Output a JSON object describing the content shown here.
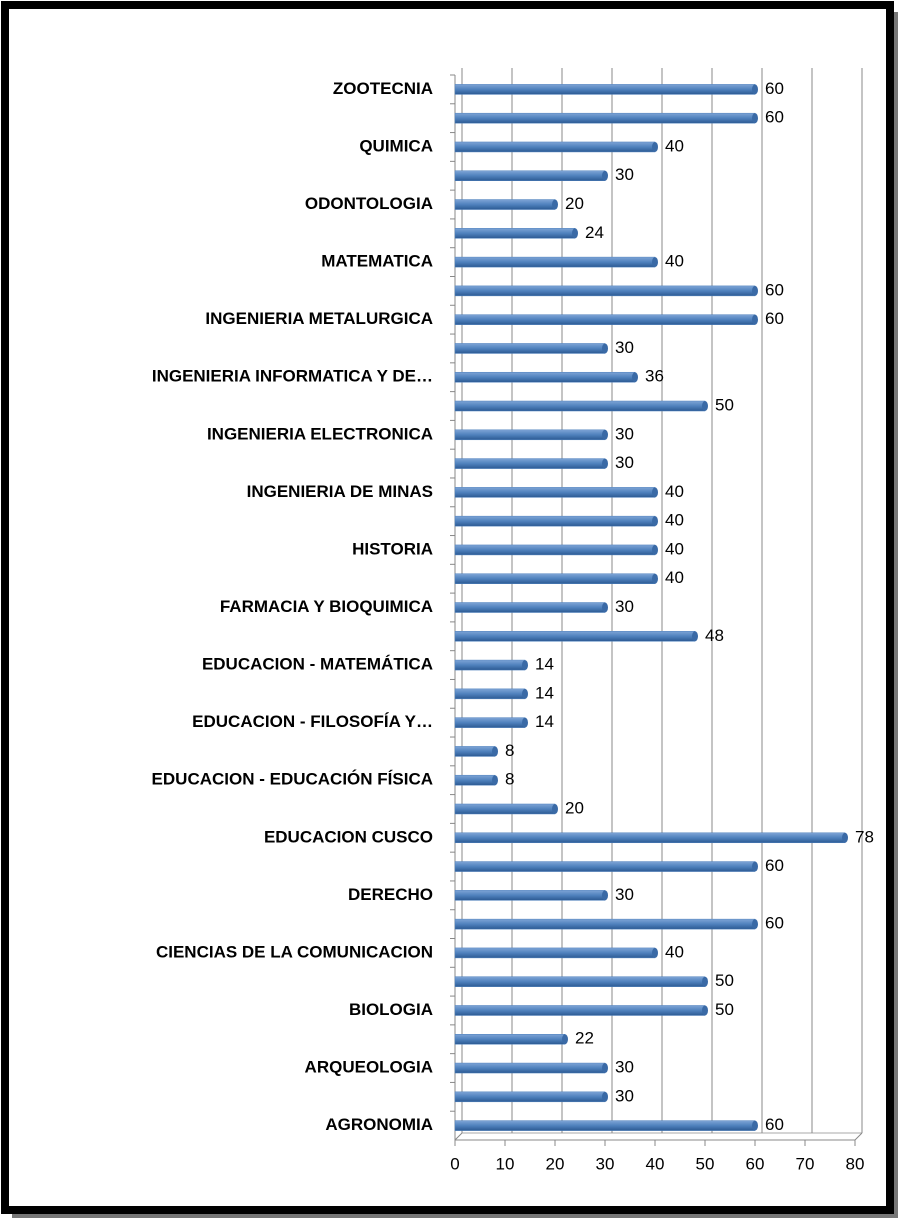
{
  "chart_data": {
    "type": "bar",
    "orientation": "horizontal",
    "color": "#4f81bd",
    "categories": [
      "ZOOTECNIA",
      null,
      "QUIMICA",
      null,
      "ODONTOLOGIA",
      null,
      "MATEMATICA",
      null,
      "INGENIERIA METALURGICA",
      null,
      "INGENIERIA INFORMATICA Y DE…",
      null,
      "INGENIERIA ELECTRONICA",
      null,
      "INGENIERIA DE MINAS",
      null,
      "HISTORIA",
      null,
      "FARMACIA Y BIOQUIMICA",
      null,
      "EDUCACION - MATEMÁTICA",
      null,
      "EDUCACION - FILOSOFÍA Y…",
      null,
      "EDUCACION - EDUCACIÓN FÍSICA",
      null,
      "EDUCACION CUSCO",
      null,
      "DERECHO",
      null,
      "CIENCIAS DE LA COMUNICACION",
      null,
      "BIOLOGIA",
      null,
      "ARQUEOLOGIA",
      null,
      "AGRONOMIA"
    ],
    "values": [
      60,
      60,
      40,
      30,
      20,
      24,
      40,
      60,
      60,
      30,
      36,
      50,
      30,
      30,
      40,
      40,
      40,
      40,
      30,
      48,
      14,
      14,
      14,
      8,
      8,
      20,
      78,
      60,
      30,
      60,
      40,
      50,
      50,
      22,
      30,
      30,
      60
    ],
    "xlim": [
      0,
      80
    ],
    "xticks": [
      0,
      10,
      20,
      30,
      40,
      50,
      60,
      70,
      80
    ],
    "grid": true
  }
}
